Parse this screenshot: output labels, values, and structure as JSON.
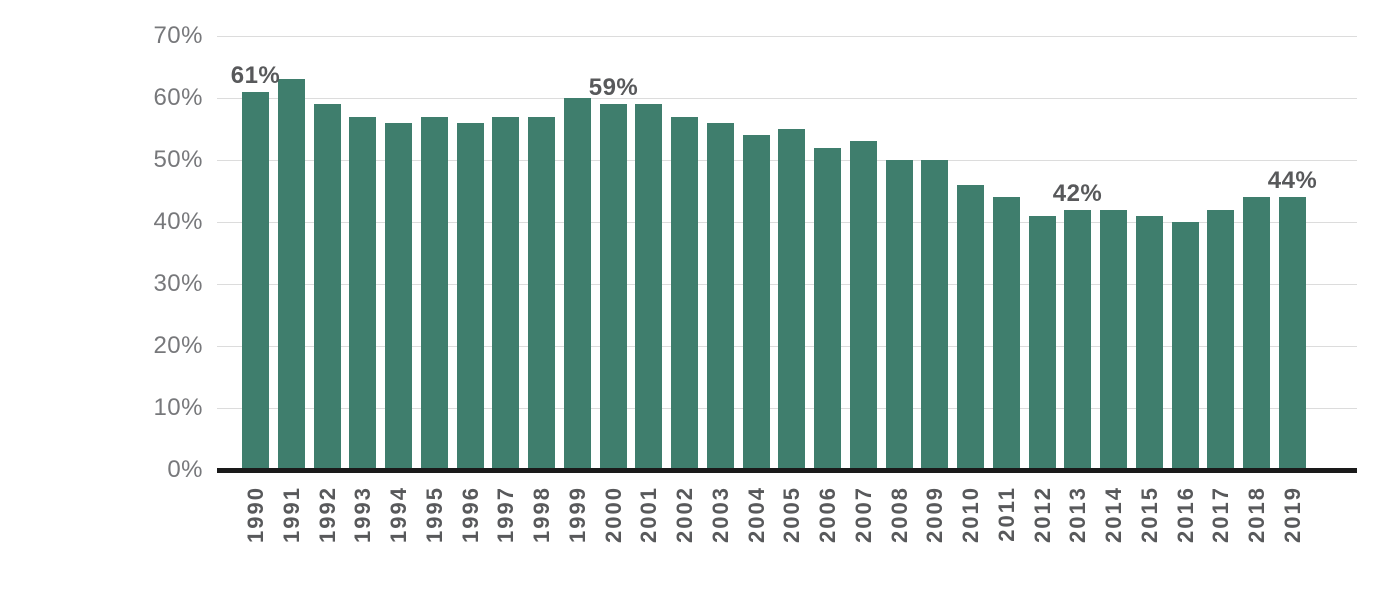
{
  "chart_data": {
    "type": "bar",
    "categories": [
      "1990",
      "1991",
      "1992",
      "1993",
      "1994",
      "1995",
      "1996",
      "1997",
      "1998",
      "1999",
      "2000",
      "2001",
      "2002",
      "2003",
      "2004",
      "2005",
      "2006",
      "2007",
      "2008",
      "2009",
      "2010",
      "2011",
      "2012",
      "2013",
      "2014",
      "2015",
      "2016",
      "2017",
      "2018",
      "2019"
    ],
    "values": [
      61,
      63,
      59,
      57,
      56,
      57,
      56,
      57,
      57,
      60,
      59,
      59,
      57,
      56,
      54,
      55,
      52,
      53,
      50,
      50,
      46,
      44,
      41,
      42,
      42,
      41,
      40,
      42,
      44,
      44
    ],
    "point_labels": [
      {
        "category": "1990",
        "label": "61%"
      },
      {
        "category": "2000",
        "label": "59%"
      },
      {
        "category": "2013",
        "label": "42%"
      },
      {
        "category": "2019",
        "label": "44%"
      }
    ],
    "yticks": [
      {
        "value": 0,
        "label": "0%"
      },
      {
        "value": 10,
        "label": "10%"
      },
      {
        "value": 20,
        "label": "20%"
      },
      {
        "value": 30,
        "label": "30%"
      },
      {
        "value": 40,
        "label": "40%"
      },
      {
        "value": 50,
        "label": "50%"
      },
      {
        "value": 60,
        "label": "60%"
      },
      {
        "value": 70,
        "label": "70%"
      }
    ],
    "ylim": [
      0,
      70
    ],
    "grid": true,
    "legend": "none",
    "colors": {
      "bar": "#3f7e6d",
      "gridline": "#dcdcdc",
      "axis_line": "#1a1a1a",
      "ytick_text": "#77787b",
      "xtick_text": "#58595b",
      "point_label_text": "#58595b",
      "background": "#ffffff"
    }
  }
}
